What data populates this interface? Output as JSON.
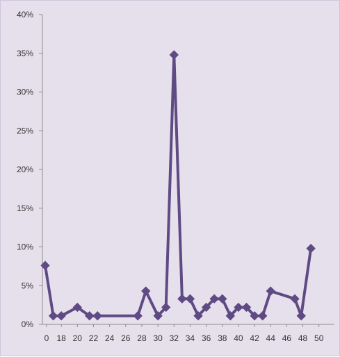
{
  "chart_data": {
    "type": "line",
    "title": "",
    "xlabel": "",
    "ylabel": "",
    "ylim": [
      0,
      40
    ],
    "xlim": [
      15,
      52
    ],
    "y_ticks": [
      0,
      5,
      10,
      15,
      20,
      25,
      30,
      35,
      40
    ],
    "y_tick_labels": [
      "0%",
      "5%",
      "10%",
      "15%",
      "20%",
      "25%",
      "30%",
      "35%",
      "40%"
    ],
    "x_tick_labels": [
      "0",
      "18",
      "20",
      "22",
      "24",
      "26",
      "28",
      "30",
      "32",
      "34",
      "36",
      "38",
      "40",
      "42",
      "44",
      "46",
      "48",
      "50"
    ],
    "x_tick_values": [
      null,
      18,
      20,
      22,
      24,
      26,
      28,
      30,
      32,
      34,
      36,
      38,
      40,
      42,
      44,
      46,
      48,
      50
    ],
    "grid": false,
    "legend": "none",
    "series": [
      {
        "color": "#5f4a84",
        "points": [
          [
            16,
            7.6
          ],
          [
            17,
            1.1
          ],
          [
            18,
            1.1
          ],
          [
            20,
            2.2
          ],
          [
            21.5,
            1.1
          ],
          [
            22.5,
            1.1
          ],
          [
            27.5,
            1.1
          ],
          [
            28.5,
            4.3
          ],
          [
            30,
            1.1
          ],
          [
            31,
            2.2
          ],
          [
            32,
            34.8
          ],
          [
            33,
            3.3
          ],
          [
            34,
            3.3
          ],
          [
            35,
            1.1
          ],
          [
            36,
            2.2
          ],
          [
            37,
            3.3
          ],
          [
            38,
            3.3
          ],
          [
            39,
            1.1
          ],
          [
            40,
            2.2
          ],
          [
            41,
            2.2
          ],
          [
            42,
            1.1
          ],
          [
            43,
            1.1
          ],
          [
            44,
            4.3
          ],
          [
            47,
            3.3
          ],
          [
            47.8,
            1.1
          ],
          [
            49,
            9.8
          ]
        ]
      }
    ]
  }
}
